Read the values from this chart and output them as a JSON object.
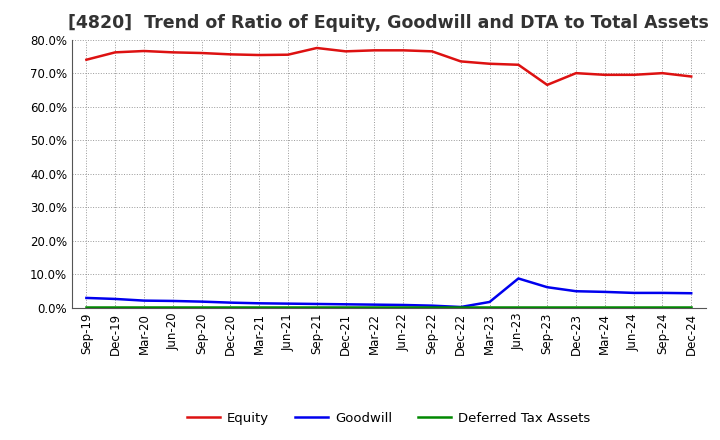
{
  "title": "[4820]  Trend of Ratio of Equity, Goodwill and DTA to Total Assets",
  "x_labels": [
    "Sep-19",
    "Dec-19",
    "Mar-20",
    "Jun-20",
    "Sep-20",
    "Dec-20",
    "Mar-21",
    "Jun-21",
    "Sep-21",
    "Dec-21",
    "Mar-22",
    "Jun-22",
    "Sep-22",
    "Dec-22",
    "Mar-23",
    "Jun-23",
    "Sep-23",
    "Dec-23",
    "Mar-24",
    "Jun-24",
    "Sep-24",
    "Dec-24"
  ],
  "equity": [
    74.0,
    76.2,
    76.6,
    76.2,
    76.0,
    75.6,
    75.4,
    75.5,
    77.5,
    76.5,
    76.8,
    76.8,
    76.5,
    73.5,
    72.8,
    72.5,
    66.5,
    70.0,
    69.5,
    69.5,
    70.0,
    69.0
  ],
  "goodwill": [
    3.0,
    2.7,
    2.2,
    2.1,
    1.9,
    1.6,
    1.4,
    1.3,
    1.2,
    1.1,
    1.0,
    0.9,
    0.7,
    0.3,
    1.8,
    8.8,
    6.2,
    5.0,
    4.8,
    4.5,
    4.5,
    4.4
  ],
  "dta": [
    0.3,
    0.3,
    0.3,
    0.3,
    0.3,
    0.3,
    0.3,
    0.3,
    0.3,
    0.3,
    0.3,
    0.3,
    0.3,
    0.3,
    0.3,
    0.3,
    0.3,
    0.3,
    0.3,
    0.3,
    0.3,
    0.3
  ],
  "equity_color": "#dd1111",
  "goodwill_color": "#0000ee",
  "dta_color": "#008800",
  "ylim": [
    0,
    80
  ],
  "yticks": [
    0,
    10,
    20,
    30,
    40,
    50,
    60,
    70,
    80
  ],
  "background_color": "#ffffff",
  "grid_color": "#999999",
  "title_fontsize": 12.5,
  "tick_fontsize": 8.5,
  "legend_fontsize": 9.5
}
